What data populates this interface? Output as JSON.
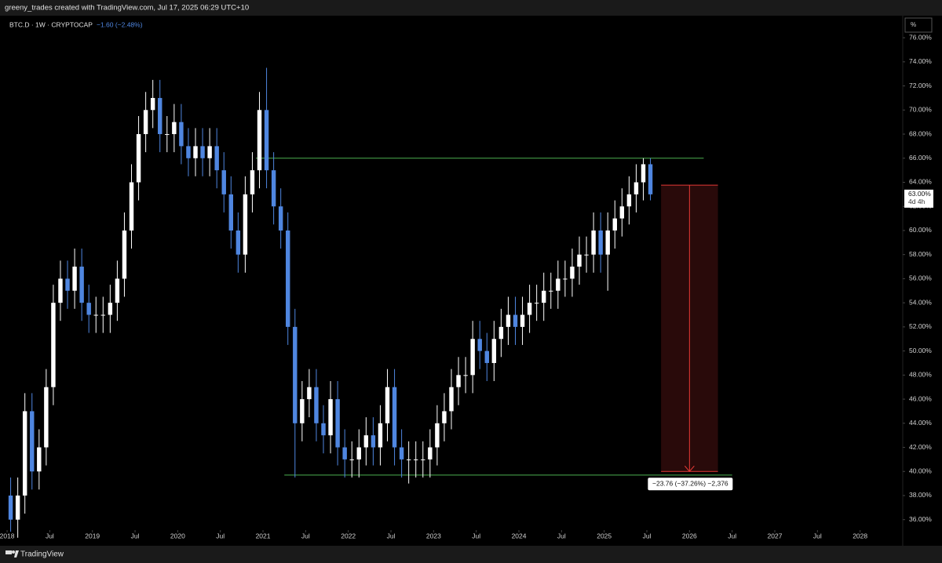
{
  "attribution": "greeny_trades created with TradingView.com, Jul 17, 2025 06:29 UTC+10",
  "footer": {
    "brand": "TradingView"
  },
  "chart_data": {
    "type": "candlestick",
    "symbol": "BTC.D · 1W · CRYPTOCAP",
    "change": "−1.60 (−2.48%)",
    "unit": "%",
    "x": [
      "2018-01",
      "2018-02",
      "2018-03",
      "2018-04",
      "2018-05",
      "2018-06",
      "2018-07",
      "2018-08",
      "2018-09",
      "2018-10",
      "2018-11",
      "2018-12",
      "2019-01",
      "2019-02",
      "2019-03",
      "2019-04",
      "2019-05",
      "2019-06",
      "2019-07",
      "2019-08",
      "2019-09",
      "2019-10",
      "2019-11",
      "2019-12",
      "2020-01",
      "2020-02",
      "2020-03",
      "2020-04",
      "2020-05",
      "2020-06",
      "2020-07",
      "2020-08",
      "2020-09",
      "2020-10",
      "2020-11",
      "2020-12",
      "2021-01",
      "2021-02",
      "2021-03",
      "2021-04",
      "2021-05",
      "2021-06",
      "2021-07",
      "2021-08",
      "2021-09",
      "2021-10",
      "2021-11",
      "2021-12",
      "2022-01",
      "2022-02",
      "2022-03",
      "2022-04",
      "2022-05",
      "2022-06",
      "2022-07",
      "2022-08",
      "2022-09",
      "2022-10",
      "2022-11",
      "2022-12",
      "2023-01",
      "2023-02",
      "2023-03",
      "2023-04",
      "2023-05",
      "2023-06",
      "2023-07",
      "2023-08",
      "2023-09",
      "2023-10",
      "2023-11",
      "2023-12",
      "2024-01",
      "2024-02",
      "2024-03",
      "2024-04",
      "2024-05",
      "2024-06",
      "2024-07",
      "2024-08",
      "2024-09",
      "2024-10",
      "2024-11",
      "2024-12",
      "2025-01",
      "2025-02",
      "2025-03",
      "2025-04",
      "2025-05",
      "2025-06",
      "2025-07"
    ],
    "open": [
      38,
      36,
      38,
      45,
      40,
      42,
      47,
      54,
      56,
      55,
      57,
      54,
      53,
      53,
      53,
      54,
      56,
      60,
      64,
      68,
      70,
      71,
      68,
      68,
      69,
      67,
      66,
      67,
      66,
      67,
      65,
      63,
      60,
      58,
      63,
      65,
      70,
      65,
      62,
      60,
      52,
      44,
      46,
      47,
      44,
      43,
      46,
      42,
      41,
      41,
      42,
      43,
      42,
      44,
      47,
      42,
      41,
      41,
      41,
      41,
      42,
      44,
      45,
      47,
      48,
      48,
      51,
      50,
      49,
      51,
      52,
      53,
      52,
      53,
      54,
      54,
      55,
      55,
      56,
      56,
      57,
      58,
      58,
      60,
      58,
      60,
      61,
      62,
      63,
      64,
      65.5
    ],
    "high": [
      39.5,
      39.5,
      46.5,
      46.5,
      43.5,
      48.5,
      55.5,
      57.5,
      57.5,
      58.5,
      58.5,
      55.5,
      54.5,
      54.5,
      55.5,
      57.5,
      61.5,
      65.5,
      69.5,
      71.5,
      72.5,
      72.5,
      69.5,
      70.5,
      70.5,
      68.5,
      68.5,
      68.5,
      68.5,
      68.5,
      66.5,
      64.5,
      61.5,
      64.5,
      66.5,
      71.5,
      73.5,
      66.5,
      63.5,
      61.5,
      53.5,
      47.5,
      48.5,
      48.5,
      45.5,
      47.5,
      47.5,
      43.5,
      42.5,
      43.5,
      44.5,
      44.5,
      45.5,
      48.5,
      48.5,
      43.5,
      42.5,
      42.5,
      42.5,
      43.5,
      45.5,
      46.5,
      48.5,
      49.5,
      49.5,
      52.5,
      52.5,
      51.5,
      52.5,
      53.5,
      54.5,
      54.5,
      54.5,
      55.5,
      55.5,
      56.5,
      56.5,
      57.5,
      57.5,
      58.5,
      59.5,
      59.5,
      61.5,
      61.5,
      61.5,
      62.5,
      63.5,
      64.5,
      65.5,
      66,
      66
    ],
    "low": [
      35,
      34.5,
      36.5,
      38.5,
      38.5,
      40.5,
      45.5,
      52.5,
      53.5,
      53.5,
      52.5,
      51.5,
      51.5,
      51.5,
      51.5,
      52.5,
      54.5,
      58.5,
      62.5,
      66.5,
      68.5,
      66.5,
      66.5,
      66.5,
      65.5,
      64.5,
      64.5,
      64.5,
      64.5,
      63.5,
      61.5,
      58.5,
      56.5,
      56.5,
      61.5,
      63.5,
      63.5,
      60.5,
      58.5,
      50.5,
      39.5,
      42.5,
      44.5,
      42.5,
      41.5,
      41.5,
      40.5,
      39.5,
      39.5,
      39.5,
      40.5,
      40.5,
      40.5,
      42.5,
      40.5,
      39.5,
      39,
      39.5,
      39.5,
      39.5,
      40.5,
      42.5,
      43.5,
      45.5,
      46.5,
      46.5,
      48.5,
      47.5,
      47.5,
      49.5,
      50.5,
      50.5,
      50.5,
      51.5,
      52.5,
      52.5,
      53.5,
      53.5,
      54.5,
      54.5,
      55.5,
      56.5,
      56.5,
      56.5,
      55,
      58.5,
      59.5,
      60.5,
      61.5,
      62.5,
      62.5
    ],
    "close": [
      36,
      38,
      45,
      40,
      42,
      47,
      54,
      56,
      55,
      57,
      54,
      53,
      53,
      53,
      54,
      56,
      60,
      64,
      68,
      70,
      71,
      68,
      68,
      69,
      67,
      66,
      67,
      66,
      67,
      65,
      63,
      60,
      58,
      63,
      65,
      70,
      65,
      62,
      60,
      52,
      44,
      46,
      47,
      44,
      43,
      46,
      42,
      41,
      41,
      42,
      43,
      42,
      44,
      47,
      42,
      41,
      41,
      41,
      41,
      42,
      44,
      45,
      47,
      48,
      48,
      51,
      50,
      49,
      51,
      52,
      53,
      52,
      53,
      54,
      54,
      55,
      55,
      56,
      56,
      57,
      58,
      58,
      60,
      58,
      60,
      61,
      62,
      63,
      64,
      65.5,
      63
    ],
    "up_color": "#ffffff",
    "down_color": "#4f86e0",
    "xlim": [
      "2017-12",
      "2028-07"
    ],
    "ylim": [
      35.2,
      77.7
    ],
    "yticks": [
      {
        "value": 36,
        "label": "36.00%"
      },
      {
        "value": 38,
        "label": "38.00%"
      },
      {
        "value": 40,
        "label": "40.00%"
      },
      {
        "value": 42,
        "label": "42.00%"
      },
      {
        "value": 44,
        "label": "44.00%"
      },
      {
        "value": 46,
        "label": "46.00%"
      },
      {
        "value": 48,
        "label": "48.00%"
      },
      {
        "value": 50,
        "label": "50.00%"
      },
      {
        "value": 52,
        "label": "52.00%"
      },
      {
        "value": 54,
        "label": "54.00%"
      },
      {
        "value": 56,
        "label": "56.00%"
      },
      {
        "value": 58,
        "label": "58.00%"
      },
      {
        "value": 60,
        "label": "60.00%"
      },
      {
        "value": 62,
        "label": "62.00%"
      },
      {
        "value": 64,
        "label": "64.00%"
      },
      {
        "value": 66,
        "label": "66.00%"
      },
      {
        "value": 68,
        "label": "68.00%"
      },
      {
        "value": 70,
        "label": "70.00%"
      },
      {
        "value": 72,
        "label": "72.00%"
      },
      {
        "value": 74,
        "label": "74.00%"
      },
      {
        "value": 76,
        "label": "76.00%"
      }
    ],
    "xticks": [
      {
        "value": "2018-01",
        "label": "2018"
      },
      {
        "value": "2018-07",
        "label": "Jul"
      },
      {
        "value": "2019-01",
        "label": "2019"
      },
      {
        "value": "2019-07",
        "label": "Jul"
      },
      {
        "value": "2020-01",
        "label": "2020"
      },
      {
        "value": "2020-07",
        "label": "Jul"
      },
      {
        "value": "2021-01",
        "label": "2021"
      },
      {
        "value": "2021-07",
        "label": "Jul"
      },
      {
        "value": "2022-01",
        "label": "2022"
      },
      {
        "value": "2022-07",
        "label": "Jul"
      },
      {
        "value": "2023-01",
        "label": "2023"
      },
      {
        "value": "2023-07",
        "label": "Jul"
      },
      {
        "value": "2024-01",
        "label": "2024"
      },
      {
        "value": "2024-07",
        "label": "Jul"
      },
      {
        "value": "2025-01",
        "label": "2025"
      },
      {
        "value": "2025-07",
        "label": "Jul"
      },
      {
        "value": "2026-01",
        "label": "2026"
      },
      {
        "value": "2026-07",
        "label": "Jul"
      },
      {
        "value": "2027-01",
        "label": "2027"
      },
      {
        "value": "2027-07",
        "label": "Jul"
      },
      {
        "value": "2028-01",
        "label": "2028"
      }
    ],
    "lines": [
      {
        "x": [
          "2020-12",
          "2026-03"
        ],
        "y": 66,
        "color": "#4caf50"
      },
      {
        "x": [
          "2021-04",
          "2026-07"
        ],
        "y": 39.7,
        "color": "#4caf50"
      }
    ],
    "measure": {
      "x": [
        "2025-09",
        "2026-05"
      ],
      "from": 63.76,
      "to": 40,
      "color": "#e53935",
      "label": "−23.76 (−37.26%) −2,376"
    },
    "last_price": {
      "value": 63,
      "label": "63.00%",
      "countdown": "4d 4h"
    }
  }
}
